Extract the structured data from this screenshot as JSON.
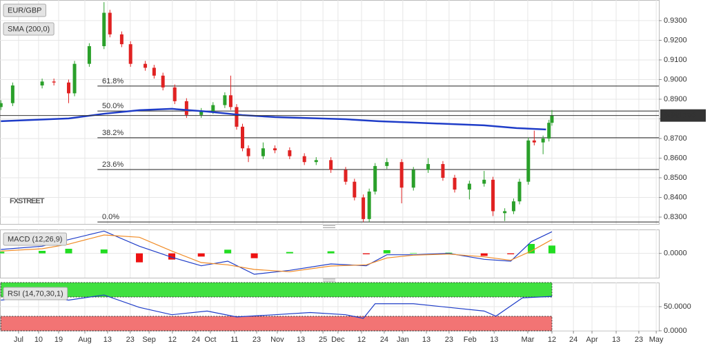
{
  "chart_data": [
    {
      "type": "candlestick",
      "title": "EUR/GBP",
      "x": [
        -6,
        -2,
        8,
        12,
        17,
        19,
        24,
        29,
        31,
        35,
        38,
        43,
        46,
        49,
        53,
        57,
        62,
        66,
        70,
        72,
        74,
        76,
        78,
        83,
        87,
        92,
        97,
        101,
        106,
        111,
        114,
        117,
        119,
        121,
        125,
        130,
        134,
        139,
        144,
        148,
        153,
        158,
        161,
        165,
        168,
        170,
        173,
        175,
        178,
        180,
        181
      ],
      "open": [
        0.886,
        0.888,
        0.897,
        0.899,
        0.8985,
        0.893,
        0.908,
        0.917,
        0.934,
        0.923,
        0.918,
        0.908,
        0.906,
        0.902,
        0.896,
        0.889,
        0.882,
        0.884,
        0.887,
        0.892,
        0.886,
        0.876,
        0.865,
        0.861,
        0.865,
        0.864,
        0.861,
        0.858,
        0.859,
        0.854,
        0.848,
        0.84,
        0.829,
        0.843,
        0.856,
        0.858,
        0.845,
        0.854,
        0.857,
        0.85,
        0.844,
        0.847,
        0.849,
        0.832,
        0.833,
        0.838,
        0.848,
        0.869,
        0.868,
        0.87,
        0.878
      ],
      "high": [
        0.8895,
        0.8985,
        0.9005,
        0.9005,
        0.9,
        0.9095,
        0.9185,
        0.9394,
        0.9355,
        0.9245,
        0.9195,
        0.9095,
        0.9075,
        0.9035,
        0.8975,
        0.8905,
        0.8855,
        0.8885,
        0.8935,
        0.902,
        0.8875,
        0.8775,
        0.8665,
        0.868,
        0.8665,
        0.8655,
        0.8625,
        0.8605,
        0.8605,
        0.8555,
        0.8495,
        0.8415,
        0.8445,
        0.8575,
        0.86,
        0.8595,
        0.8555,
        0.86,
        0.8585,
        0.8515,
        0.8485,
        0.8535,
        0.8505,
        0.8345,
        0.8395,
        0.8495,
        0.8705,
        0.874,
        0.8715,
        0.8795,
        0.8845
      ],
      "low": [
        0.8845,
        0.8865,
        0.8955,
        0.897,
        0.888,
        0.8915,
        0.9065,
        0.9155,
        0.9215,
        0.9165,
        0.9065,
        0.9045,
        0.9005,
        0.8945,
        0.8875,
        0.8805,
        0.8805,
        0.8825,
        0.8855,
        0.8845,
        0.8745,
        0.8635,
        0.858,
        0.8595,
        0.8625,
        0.8595,
        0.8565,
        0.8565,
        0.8525,
        0.8465,
        0.8385,
        0.8275,
        0.8275,
        0.8415,
        0.8545,
        0.837,
        0.8435,
        0.8525,
        0.8485,
        0.8425,
        0.839,
        0.8455,
        0.8305,
        0.828,
        0.8315,
        0.8365,
        0.8465,
        0.8665,
        0.862,
        0.8685,
        0.8765
      ],
      "close": [
        0.888,
        0.897,
        0.899,
        0.8985,
        0.893,
        0.908,
        0.917,
        0.934,
        0.923,
        0.918,
        0.908,
        0.906,
        0.902,
        0.896,
        0.889,
        0.882,
        0.884,
        0.887,
        0.892,
        0.886,
        0.876,
        0.865,
        0.861,
        0.865,
        0.864,
        0.861,
        0.858,
        0.859,
        0.854,
        0.848,
        0.84,
        0.829,
        0.843,
        0.856,
        0.858,
        0.845,
        0.854,
        0.857,
        0.85,
        0.844,
        0.847,
        0.849,
        0.833,
        0.833,
        0.838,
        0.848,
        0.869,
        0.868,
        0.87,
        0.878,
        0.8817
      ],
      "up_color": "#2aa02a",
      "down_color": "#e02222",
      "overlays": [
        {
          "name": "SMA (200,0)",
          "color": "#1e3cc8",
          "x": [
            -6,
            17,
            29,
            41,
            52,
            64,
            76,
            87,
            111,
            122,
            134,
            146,
            158,
            169,
            179
          ],
          "values": [
            0.8788,
            0.8802,
            0.8826,
            0.8844,
            0.8851,
            0.8837,
            0.8819,
            0.8809,
            0.8798,
            0.8788,
            0.8781,
            0.8774,
            0.8767,
            0.8753,
            0.8746
          ]
        }
      ],
      "levels": [
        {
          "label": "61.8%",
          "value": 0.8967
        },
        {
          "label": "50.0%",
          "value": 0.884
        },
        {
          "label": "38.2%",
          "value": 0.8704
        },
        {
          "label": "23.6%",
          "value": 0.8542
        },
        {
          "label": "0.0%",
          "value": 0.8275
        }
      ],
      "last_price": {
        "value": 0.8817,
        "label": "0.881700"
      },
      "watermark": "FXSTREET",
      "xlim": [
        -6.3,
        217.3
      ],
      "ylim": [
        0.8265,
        0.9405
      ],
      "yticks": [
        {
          "value": 0.93,
          "label": "0.9300"
        },
        {
          "value": 0.92,
          "label": "0.9200"
        },
        {
          "value": 0.91,
          "label": "0.9100"
        },
        {
          "value": 0.9,
          "label": "0.9000"
        },
        {
          "value": 0.89,
          "label": "0.8900"
        },
        {
          "value": 0.88,
          "label": "0.8800"
        },
        {
          "value": 0.87,
          "label": "0.8700"
        },
        {
          "value": 0.86,
          "label": "0.8600"
        },
        {
          "value": 0.85,
          "label": "0.8500"
        },
        {
          "value": 0.84,
          "label": "0.8400"
        },
        {
          "value": 0.83,
          "label": "0.8300"
        }
      ],
      "grid": true
    },
    {
      "type": "macd",
      "title": "MACD (12,26,9)",
      "x": [
        -6,
        8,
        17,
        29,
        41,
        52,
        62,
        71,
        80,
        92,
        106,
        118,
        125,
        134,
        146,
        158,
        167,
        174,
        181
      ],
      "series": [
        {
          "color": "#1e3cc8",
          "values": [
            0.0017,
            0.0031,
            0.006,
            0.0097,
            0.0031,
            -0.0017,
            -0.0054,
            -0.0034,
            -0.0091,
            -0.0074,
            -0.0046,
            -0.0054,
            -0.0006,
            -0.0006,
            0.0,
            -0.0026,
            -0.0034,
            0.0051,
            0.0094
          ]
        },
        {
          "color": "#f08a24",
          "values": [
            0.001,
            0.002,
            0.004,
            0.008,
            0.007,
            0.001,
            -0.004,
            -0.005,
            -0.007,
            -0.008,
            -0.0055,
            -0.005,
            -0.002,
            -0.0008,
            -0.0003,
            -0.0015,
            -0.003,
            0.001,
            0.006
          ]
        }
      ],
      "histogram": {
        "up_color": "#22dd22",
        "down_color": "#ee1111",
        "values": [
          0.0007,
          0.0011,
          0.002,
          0.0017,
          -0.0039,
          -0.0027,
          -0.0014,
          0.0016,
          -0.0021,
          0.0006,
          0.0009,
          -0.0004,
          0.0014,
          0.0002,
          0.0003,
          -0.0011,
          -0.0004,
          0.0041,
          0.0034
        ]
      },
      "xlim": [
        -6.3,
        217.3
      ],
      "ylim": [
        -0.0106,
        0.0104
      ],
      "yticks": [
        {
          "value": 0,
          "label": "0.0000"
        }
      ],
      "grid": true
    },
    {
      "type": "rsi",
      "title": "RSI (14,70,30,1)",
      "x": [
        -6,
        8,
        17,
        29,
        41,
        52,
        64,
        74,
        87,
        99,
        111,
        117,
        121,
        134,
        146,
        158,
        162,
        171,
        181
      ],
      "values": [
        63.6,
        71.2,
        63.6,
        74.2,
        48.5,
        33.3,
        40.9,
        28.8,
        33.3,
        37.9,
        33.3,
        25.8,
        56.1,
        56.1,
        48.5,
        40.9,
        30.3,
        68.2,
        71.2
      ],
      "color": "#1e3cc8",
      "bands": [
        {
          "from": 70,
          "to": 100,
          "color": "#40e040"
        },
        {
          "from": 0,
          "to": 30,
          "color": "#f27474"
        }
      ],
      "xlim": [
        -6.3,
        217.3
      ],
      "ylim": [
        0,
        100
      ],
      "yticks": [
        {
          "value": 50,
          "label": "50.0000"
        },
        {
          "value": 0,
          "label": "0.0000"
        }
      ],
      "xticks": [
        {
          "value": 0,
          "label": "Jul"
        },
        {
          "value": 6.8,
          "label": "10"
        },
        {
          "value": 13.6,
          "label": "19"
        },
        {
          "value": 22.5,
          "label": "Aug"
        },
        {
          "value": 30.2,
          "label": "13"
        },
        {
          "value": 37.9,
          "label": "23"
        },
        {
          "value": 44.3,
          "label": "Sep"
        },
        {
          "value": 52.2,
          "label": "12"
        },
        {
          "value": 60.2,
          "label": "24"
        },
        {
          "value": 65.1,
          "label": "Oct"
        },
        {
          "value": 73.3,
          "label": "11"
        },
        {
          "value": 80.8,
          "label": "23"
        },
        {
          "value": 87.8,
          "label": "Nov"
        },
        {
          "value": 95.8,
          "label": "13"
        },
        {
          "value": 103.3,
          "label": "25"
        },
        {
          "value": 108.4,
          "label": "Dec"
        },
        {
          "value": 116.4,
          "label": "12"
        },
        {
          "value": 124.1,
          "label": "24"
        },
        {
          "value": 130.4,
          "label": "Jan"
        },
        {
          "value": 138.4,
          "label": "13"
        },
        {
          "value": 146.1,
          "label": "23"
        },
        {
          "value": 153.2,
          "label": "Feb"
        },
        {
          "value": 161.4,
          "label": "13"
        },
        {
          "value": 172.8,
          "label": "Mar"
        },
        {
          "value": 181,
          "label": "12"
        },
        {
          "value": 188.3,
          "label": "24"
        },
        {
          "value": 194.6,
          "label": "Apr"
        },
        {
          "value": 202.8,
          "label": "13"
        },
        {
          "value": 210.5,
          "label": "23"
        },
        {
          "value": 216.4,
          "label": "May"
        }
      ],
      "grid": true
    }
  ]
}
